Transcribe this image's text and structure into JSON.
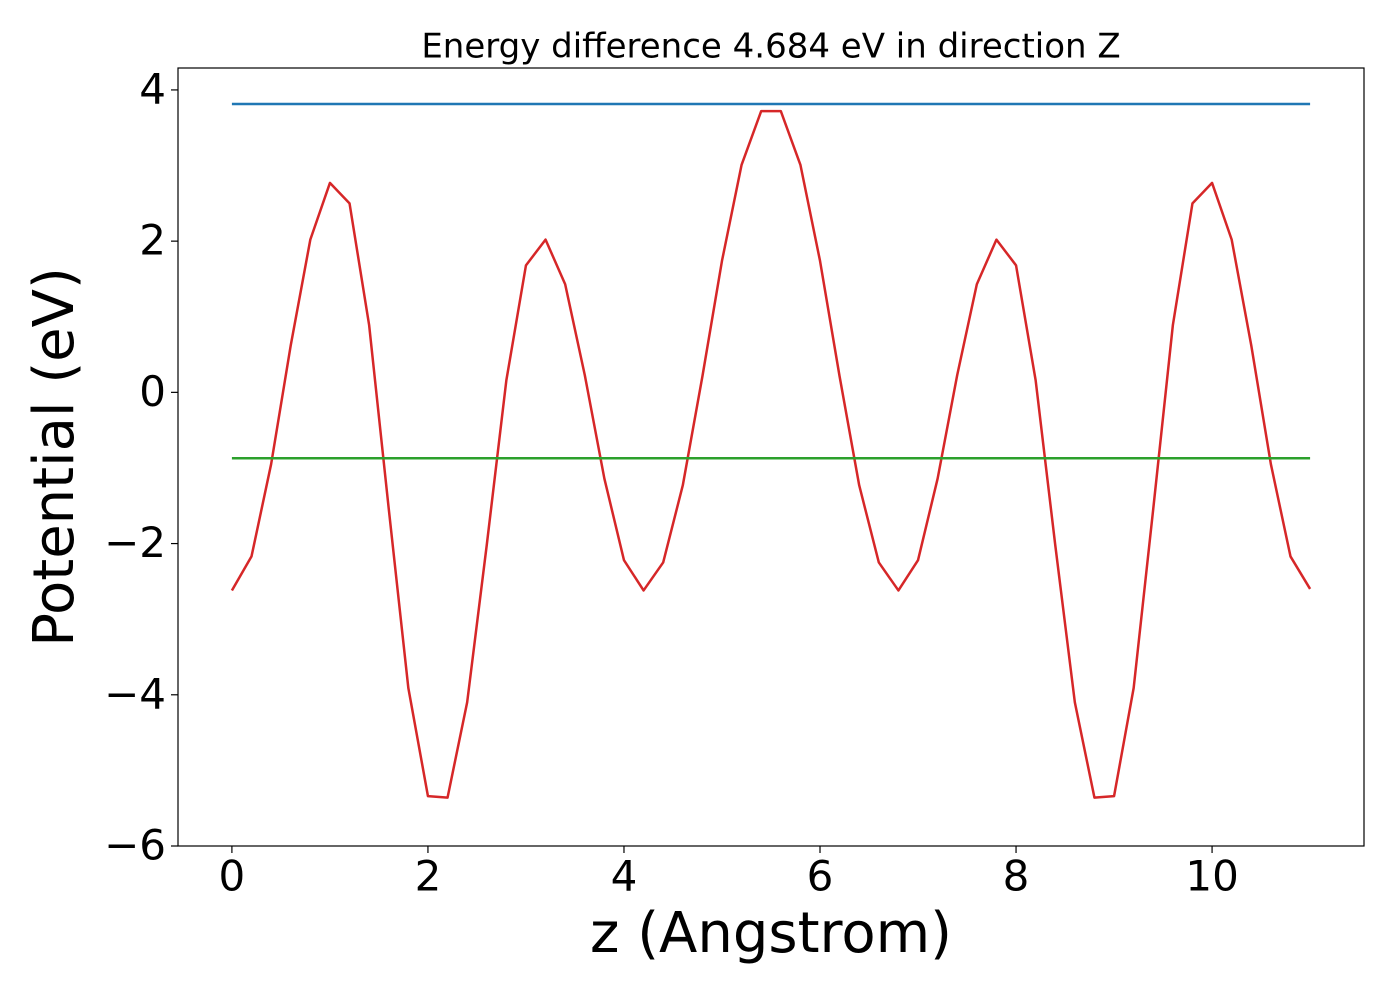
{
  "chart_data": {
    "type": "line",
    "title": "Energy difference 4.684 eV in direction Z",
    "xlabel": "z (Angstrom)",
    "ylabel": "Potential (eV)",
    "xlim": [
      -0.55,
      11.55
    ],
    "ylim": [
      -6.0,
      4.29
    ],
    "xticks": [
      0,
      2,
      4,
      6,
      8,
      10
    ],
    "yticks": [
      {
        "value": -6,
        "label": "−6"
      },
      {
        "value": -4,
        "label": "−4"
      },
      {
        "value": -2,
        "label": "−2"
      },
      0,
      2,
      4
    ],
    "series": [
      {
        "color": "#d62728",
        "x": [
          0,
          0.2,
          0.4,
          0.6,
          0.8,
          1.0,
          1.2,
          1.4,
          1.6,
          1.8,
          2.0,
          2.2,
          2.4,
          2.6,
          2.8,
          3.0,
          3.2,
          3.4,
          3.6,
          3.8,
          4.0,
          4.2,
          4.4,
          4.6,
          4.8,
          5.0,
          5.2,
          5.4,
          5.6,
          5.8,
          6.0,
          6.2,
          6.4,
          6.6,
          6.8,
          7.0,
          7.2,
          7.4,
          7.6,
          7.8,
          8.0,
          8.2,
          8.4,
          8.6,
          8.8,
          9.0,
          9.2,
          9.4,
          9.6,
          9.8,
          10.0,
          10.2,
          10.4,
          10.6,
          10.8,
          11.0
        ],
        "values": [
          -2.62,
          -2.17,
          -0.95,
          0.62,
          2.02,
          2.77,
          2.5,
          0.89,
          -1.54,
          -3.91,
          -5.34,
          -5.36,
          -4.1,
          -2.02,
          0.16,
          1.68,
          2.02,
          1.43,
          0.23,
          -1.14,
          -2.22,
          -2.62,
          -2.25,
          -1.23,
          0.21,
          1.74,
          3.01,
          3.72,
          3.72,
          3.01,
          1.74,
          0.21,
          -1.23,
          -2.25,
          -2.62,
          -2.22,
          -1.14,
          0.23,
          1.43,
          2.02,
          1.68,
          0.16,
          -2.02,
          -4.1,
          -5.36,
          -5.34,
          -3.91,
          -1.54,
          0.89,
          2.5,
          2.77,
          2.02,
          0.62,
          -0.95,
          -2.17,
          -2.6
        ]
      },
      {
        "color": "#1f77b4",
        "x": [
          0,
          11
        ],
        "values": [
          3.813,
          3.813
        ]
      },
      {
        "color": "#2ca02c",
        "x": [
          0,
          11
        ],
        "values": [
          -0.871,
          -0.871
        ]
      }
    ]
  }
}
